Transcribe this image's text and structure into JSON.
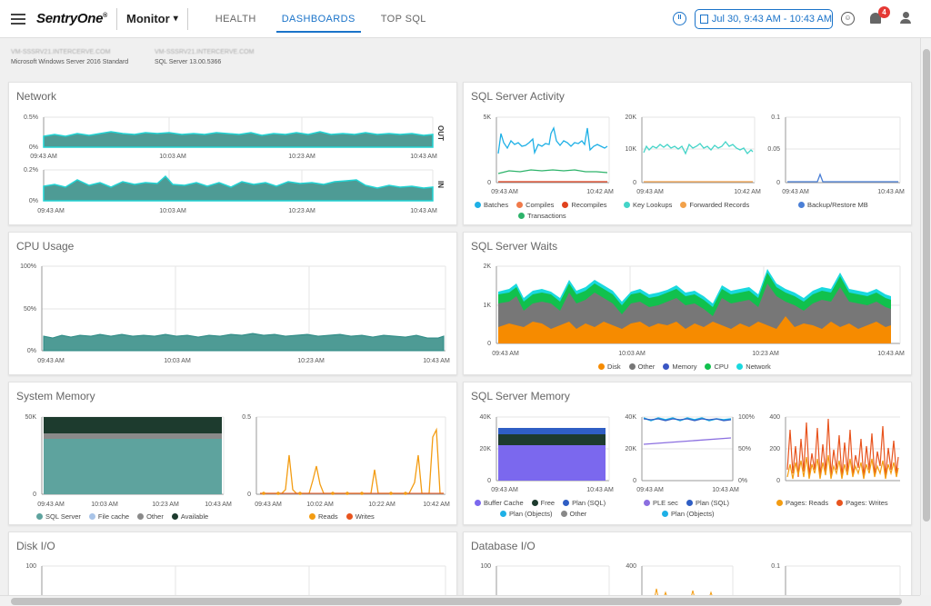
{
  "app": {
    "logo": "SentryOne",
    "logo_tm": "®",
    "module": "Monitor",
    "tabs": [
      {
        "label": "HEALTH"
      },
      {
        "label": "DASHBOARDS"
      },
      {
        "label": "TOP SQL"
      }
    ],
    "active_tab": "DASHBOARDS",
    "date_range": "Jul 30, 9:43 AM - 10:43 AM",
    "notification_count": "4",
    "accent_color": "#1a73c9"
  },
  "server": {
    "host1": "VM-SSSRV21.INTERCERVE.COM",
    "os": "Microsoft Windows Server 2016 Standard",
    "host2": "VM-SSSRV21.INTERCERVE.COM",
    "sql_version": "SQL Server 13.00.5366"
  },
  "panels": {
    "network": {
      "title": "Network",
      "out_label": "OUT",
      "in_label": "IN",
      "out_y_ticks": [
        "0.5%",
        "0%"
      ],
      "in_y_ticks": [
        "0.2%",
        "0%"
      ],
      "x_ticks": [
        "09:43 AM",
        "10:03 AM",
        "10:23 AM",
        "10:43 AM"
      ]
    },
    "cpu": {
      "title": "CPU Usage",
      "y_ticks": [
        "100%",
        "50%",
        "0%"
      ],
      "x_ticks": [
        "09:43 AM",
        "10:03 AM",
        "10:23 AM",
        "10:43 AM"
      ]
    },
    "system_memory": {
      "title": "System Memory",
      "left_y_ticks": [
        "50K",
        "0"
      ],
      "left_x_ticks": [
        "09:43 AM",
        "10:03 AM",
        "10:23 AM",
        "10:43 AM"
      ],
      "right_y_ticks": [
        "0.5",
        "0"
      ],
      "right_x_ticks": [
        "09:43 AM",
        "10:02 AM",
        "10:22 AM",
        "10:42 AM"
      ],
      "legend_left": [
        {
          "label": "SQL Server",
          "color": "#5ea39e"
        },
        {
          "label": "File cache",
          "color": "#a9c4e8"
        },
        {
          "label": "Other",
          "color": "#8a8a8a"
        },
        {
          "label": "Available",
          "color": "#1d3b2e"
        }
      ],
      "legend_right": [
        {
          "label": "Reads",
          "color": "#f39c12"
        },
        {
          "label": "Writes",
          "color": "#e8541e"
        }
      ]
    },
    "disk_io": {
      "title": "Disk I/O",
      "y_ticks": [
        "100"
      ]
    },
    "sql_activity": {
      "title": "SQL Server Activity",
      "c1_y_ticks": [
        "5K",
        "0"
      ],
      "c1_x_ticks": [
        "09:43 AM",
        "10:42 AM"
      ],
      "c2_y_ticks": [
        "20K",
        "10K",
        "0"
      ],
      "c2_x_ticks": [
        "09:43 AM",
        "10:42 AM"
      ],
      "c3_y_ticks": [
        "0.1",
        "0.05",
        "0"
      ],
      "c3_x_ticks": [
        "09:43 AM",
        "10:43 AM"
      ],
      "legend1": [
        {
          "label": "Batches",
          "color": "#1eb0e6"
        },
        {
          "label": "Compiles",
          "color": "#f07a4a"
        },
        {
          "label": "Recompiles",
          "color": "#e0421e"
        },
        {
          "label": "Transactions",
          "color": "#2db36a"
        }
      ],
      "legend2": [
        {
          "label": "Key Lookups",
          "color": "#44d4c8"
        },
        {
          "label": "Forwarded Records",
          "color": "#f2a14a"
        }
      ],
      "legend3": [
        {
          "label": "Backup/Restore MB",
          "color": "#4a7fd6"
        }
      ]
    },
    "sql_waits": {
      "title": "SQL Server Waits",
      "y_ticks": [
        "2K",
        "1K",
        "0"
      ],
      "x_ticks": [
        "09:43 AM",
        "10:03 AM",
        "10:23 AM",
        "10:43 AM"
      ],
      "legend": [
        {
          "label": "Disk",
          "color": "#f68b00"
        },
        {
          "label": "Other",
          "color": "#777777"
        },
        {
          "label": "Memory",
          "color": "#3a56c4"
        },
        {
          "label": "CPU",
          "color": "#11c14d"
        },
        {
          "label": "Network",
          "color": "#19d9df"
        }
      ]
    },
    "sql_memory": {
      "title": "SQL Server Memory",
      "c1_y_ticks": [
        "40K",
        "20K",
        "0"
      ],
      "c1_x_ticks": [
        "09:43 AM",
        "10:43 AM"
      ],
      "c2_y_left": [
        "40K",
        "20K",
        "0"
      ],
      "c2_y_right": [
        "100%",
        "50%",
        "0%"
      ],
      "c2_x_ticks": [
        "09:43 AM",
        "10:43 AM"
      ],
      "c3_y_ticks": [
        "400",
        "200",
        "0"
      ],
      "legend1": [
        {
          "label": "Buffer Cache",
          "color": "#7b68ee"
        },
        {
          "label": "Free",
          "color": "#1d3b2e"
        },
        {
          "label": "Plan (SQL)",
          "color": "#2f5ec4"
        },
        {
          "label": "Plan (Objects)",
          "color": "#1eb0e6"
        },
        {
          "label": "Other",
          "color": "#888888"
        }
      ],
      "legend2": [
        {
          "label": "PLE sec",
          "color": "#8b6fe0"
        },
        {
          "label": "Plan (SQL)",
          "color": "#2f5ec4"
        },
        {
          "label": "Plan (Objects)",
          "color": "#1eb0e6"
        }
      ],
      "legend3": [
        {
          "label": "Pages: Reads",
          "color": "#f39c12"
        },
        {
          "label": "Pages: Writes",
          "color": "#e8541e"
        }
      ]
    },
    "database_io": {
      "title": "Database I/O",
      "c1_y_ticks": [
        "100"
      ],
      "c2_y_ticks": [
        "400"
      ],
      "c3_y_ticks": [
        "0.1"
      ]
    }
  }
}
